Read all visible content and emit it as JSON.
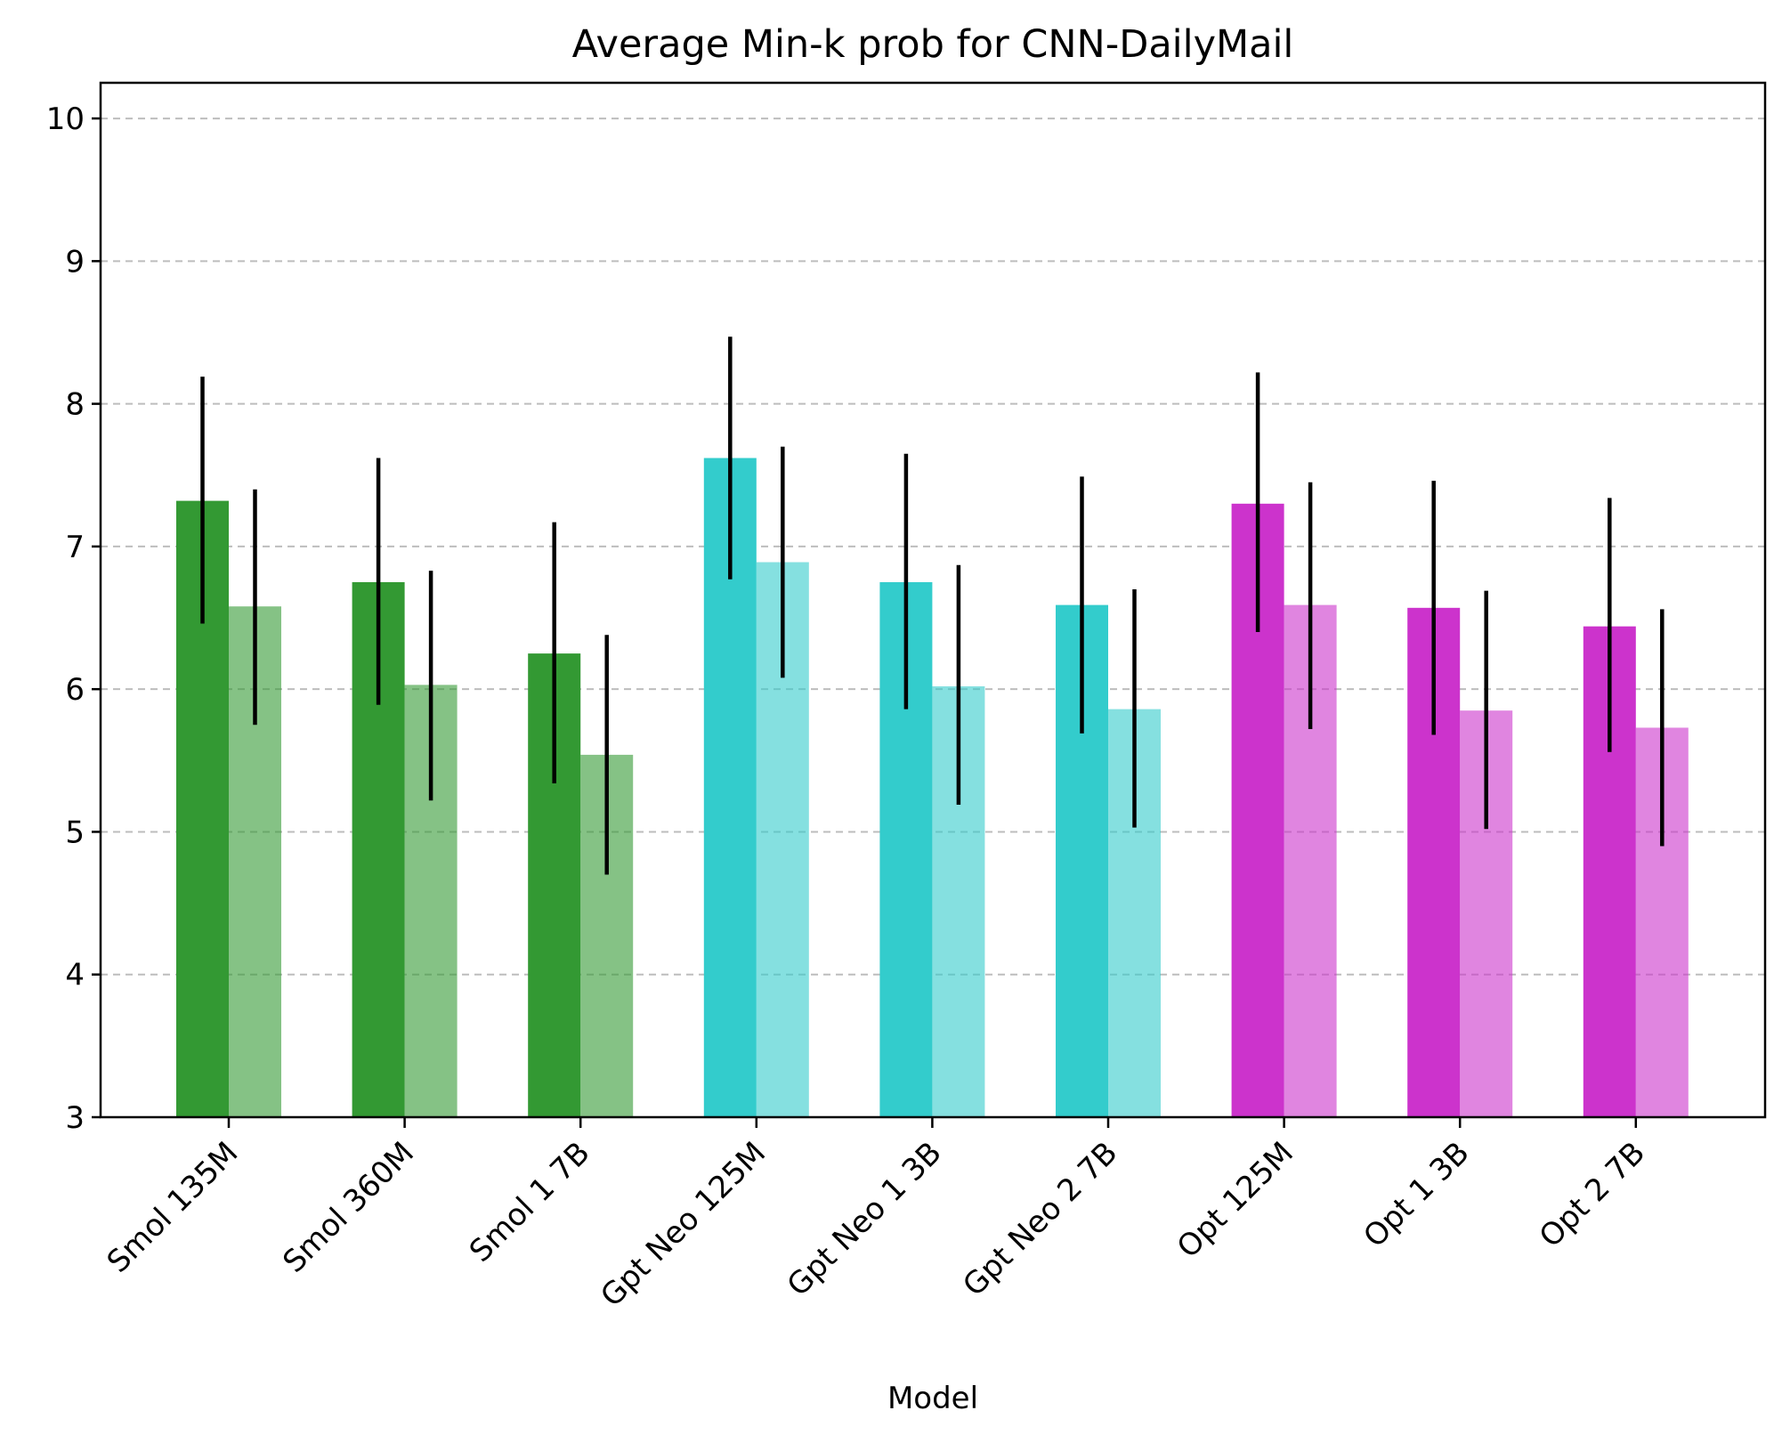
{
  "chart_data": {
    "type": "bar",
    "title": "Average Min-k prob for CNN-DailyMail",
    "xlabel": "Model",
    "ylabel": "",
    "ylim": [
      3,
      10.25
    ],
    "yticks": [
      3,
      4,
      5,
      6,
      7,
      8,
      9,
      10
    ],
    "grid": "y-dashed",
    "categories": [
      "Smol 135M",
      "Smol 360M",
      "Smol 1 7B",
      "Gpt Neo 125M",
      "Gpt Neo 1 3B",
      "Gpt Neo 2 7B",
      "Opt 125M",
      "Opt 1 3B",
      "Opt 2 7B"
    ],
    "category_colors": [
      "#339933",
      "#339933",
      "#339933",
      "#33cccc",
      "#33cccc",
      "#33cccc",
      "#cc33cc",
      "#cc33cc",
      "#cc33cc"
    ],
    "series": [
      {
        "opacity": 1.0,
        "values": [
          7.32,
          6.75,
          6.25,
          7.62,
          6.75,
          6.59,
          7.3,
          6.57,
          6.44
        ],
        "error_low": [
          6.46,
          5.89,
          5.34,
          6.77,
          5.86,
          5.69,
          6.4,
          5.68,
          5.56
        ],
        "error_high": [
          8.19,
          7.62,
          7.17,
          8.47,
          7.65,
          7.49,
          8.22,
          7.46,
          7.34
        ]
      },
      {
        "opacity": 0.6,
        "values": [
          6.58,
          6.03,
          5.54,
          6.89,
          6.02,
          5.86,
          6.59,
          5.85,
          5.73
        ],
        "error_low": [
          5.75,
          5.22,
          4.7,
          6.08,
          5.19,
          5.03,
          5.72,
          5.02,
          4.9
        ],
        "error_high": [
          7.4,
          6.83,
          6.38,
          7.7,
          6.87,
          6.7,
          7.45,
          6.69,
          6.56
        ]
      }
    ]
  }
}
